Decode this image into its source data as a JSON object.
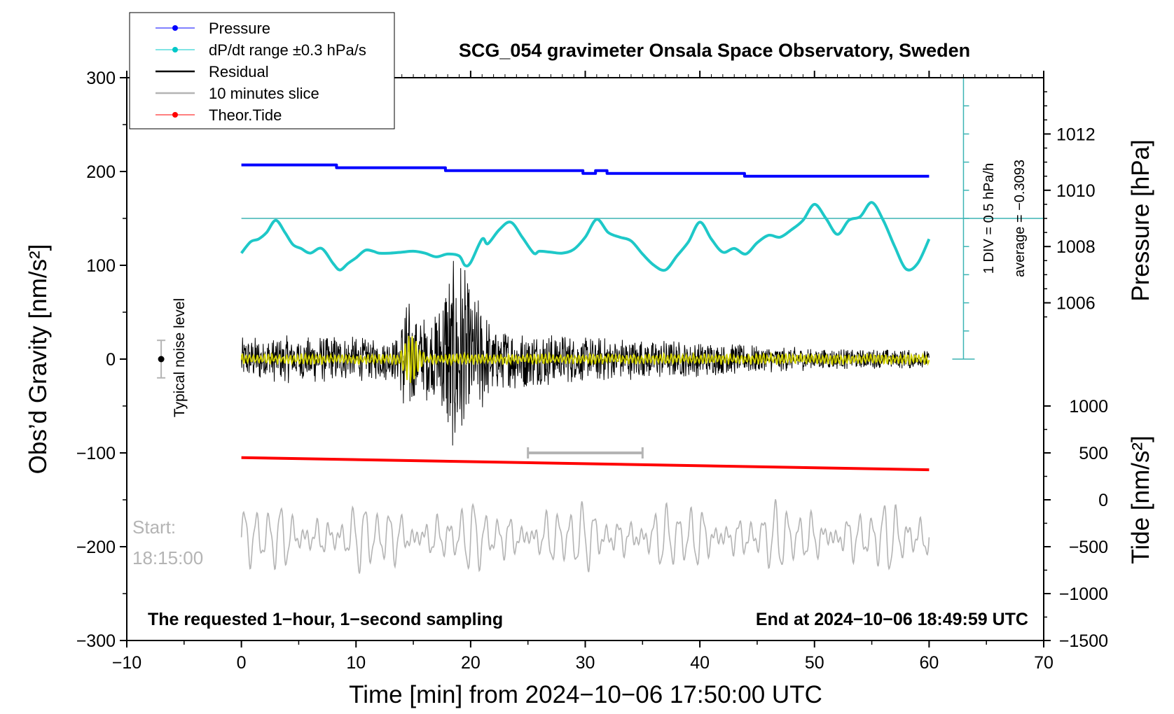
{
  "chart_data": {
    "type": "line",
    "title": "SCG_054 gravimeter Onsala Space Observatory, Sweden",
    "xlabel": "Time [min] from 2024−10−06 17:50:00 UTC",
    "ylabel_left": "Obs’d Gravity [nm/s²]",
    "ylabel_right_top": "Pressure [hPa]",
    "ylabel_right_bottom": "Tide [nm/s²]",
    "xlim": [
      -10,
      70
    ],
    "ylim": [
      -300,
      300
    ],
    "xticks": [
      -10,
      0,
      10,
      20,
      30,
      40,
      50,
      60,
      70
    ],
    "xtick_labels": [
      "−10",
      "0",
      "10",
      "20",
      "30",
      "40",
      "50",
      "60",
      "70"
    ],
    "yticks": [
      -300,
      -200,
      -100,
      0,
      100,
      200,
      300
    ],
    "ytick_labels": [
      "−300",
      "−200",
      "−100",
      "0",
      "100",
      "200",
      "300"
    ],
    "pressure_ticks": [
      1006,
      1008,
      1010,
      1012
    ],
    "pressure_tick_labels": [
      "1006",
      "1008",
      "1010",
      "1012"
    ],
    "tide_ticks": [
      -1500,
      -1000,
      -500,
      0,
      500,
      1000
    ],
    "tide_tick_labels": [
      "−1500",
      "−1000",
      "−500",
      "0",
      "500",
      "1000"
    ],
    "pressure_axis": {
      "gravity_at_1006": 60,
      "gravity_per_hPa": 30
    },
    "tide_axis": {
      "gravity_at_0": -150,
      "gravity_per_1000": 100
    },
    "legend": {
      "placement": "top-left",
      "entries": [
        {
          "label": "Pressure",
          "color": "#0000ff",
          "marker": "dot"
        },
        {
          "label": "dP/dt range ±0.3 hPa/s",
          "color": "#00c8c8",
          "marker": "dot"
        },
        {
          "label": "Residual",
          "color": "#000000",
          "marker": "line"
        },
        {
          "label": "10 minutes slice",
          "color": "#b4b4b4",
          "marker": "line"
        },
        {
          "label": "Theor.Tide",
          "color": "#ff0000",
          "marker": "dot"
        }
      ]
    },
    "colors": {
      "pressure": "#0000ff",
      "dpdt": "#1ec8c8",
      "residual": "#000000",
      "yellow": "#d2d200",
      "slice": "#b4b4b4",
      "tide": "#ff0000",
      "scale": "#3cb4b4"
    },
    "series": [
      {
        "key": "pressure",
        "unit": "hPa",
        "step": true,
        "x": [
          0,
          8.3,
          8.3,
          17.8,
          17.8,
          29.8,
          29.8,
          30.9,
          30.9,
          31.9,
          31.9,
          43.9,
          43.9,
          60
        ],
        "y": [
          1010.9,
          1010.9,
          1010.8,
          1010.8,
          1010.7,
          1010.7,
          1010.6,
          1010.6,
          1010.7,
          1010.7,
          1010.6,
          1010.6,
          1010.5,
          1010.5
        ]
      },
      {
        "key": "dpdt",
        "unit": "gravity-plot",
        "x": [
          0,
          0.8,
          1.5,
          2.2,
          3,
          3.8,
          4.5,
          5.2,
          6,
          7,
          8,
          8.6,
          9.3,
          10,
          10.8,
          11.5,
          12,
          13,
          14,
          15,
          16,
          17,
          18,
          19,
          19.5,
          20,
          21,
          21.5,
          22.5,
          23.5,
          24.5,
          25.5,
          26,
          27,
          28,
          29,
          30,
          31,
          32,
          33,
          34,
          35,
          36,
          37,
          38,
          39,
          40,
          41,
          42,
          43,
          44,
          45,
          46,
          47,
          48,
          49,
          50,
          51,
          52,
          53,
          54,
          55,
          56,
          57,
          58,
          59,
          60
        ],
        "y": [
          113,
          125,
          128,
          135,
          148,
          135,
          122,
          118,
          113,
          118,
          102,
          95,
          102,
          108,
          116,
          115,
          113,
          113,
          114,
          115,
          113,
          109,
          112,
          110,
          100,
          103,
          128,
          123,
          138,
          146,
          130,
          113,
          115,
          114,
          113,
          117,
          130,
          149,
          135,
          130,
          126,
          112,
          100,
          95,
          110,
          125,
          146,
          128,
          114,
          118,
          112,
          124,
          132,
          130,
          138,
          148,
          165,
          150,
          133,
          148,
          152,
          167,
          148,
          120,
          96,
          102,
          128
        ]
      },
      {
        "key": "tide",
        "unit": "nm/s²",
        "x": [
          0,
          60
        ],
        "y": [
          450,
          320
        ]
      }
    ],
    "residual_envelope": {
      "description_units": "nm/s² amplitude vs minutes",
      "x": [
        0,
        2,
        4,
        8,
        12,
        13.8,
        14.2,
        15,
        16,
        17,
        18,
        19,
        20,
        21,
        22,
        24,
        26,
        30,
        40,
        50,
        60
      ],
      "amp": [
        24,
        24,
        26,
        26,
        22,
        25,
        75,
        55,
        48,
        50,
        105,
        120,
        75,
        60,
        35,
        33,
        30,
        25,
        19,
        12,
        10
      ]
    },
    "slice_segment": {
      "x_start": 25,
      "x_end": 35,
      "y": -100
    },
    "noise_bar": {
      "x": -7,
      "y": 0,
      "half_range": 20
    },
    "dpdt_reference_line_y": 150,
    "scale_bar_x": 63,
    "annotations": {
      "noise": "Typical noise level",
      "start_label": "Start:",
      "start_time": "18:15:00",
      "sampling": "The requested 1−hour, 1−second sampling",
      "end": "End at 2024−10−06 18:49:59 UTC",
      "div": "1 DIV = 0.5 hPa/h",
      "average": "average = −0.3093"
    }
  }
}
